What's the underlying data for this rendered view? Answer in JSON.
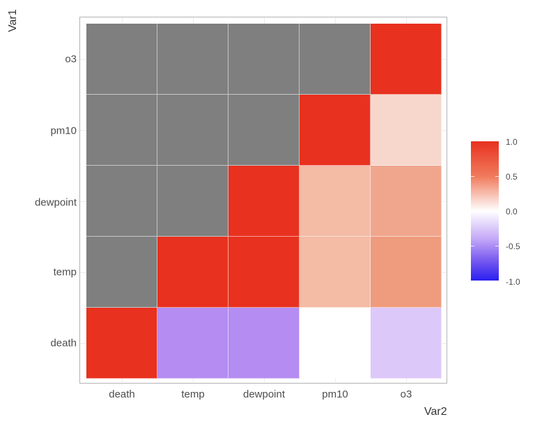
{
  "chart_data": {
    "type": "heatmap",
    "title": "",
    "xlabel": "Var2",
    "ylabel": "Var1",
    "x_categories": [
      "death",
      "temp",
      "dewpoint",
      "pm10",
      "o3"
    ],
    "y_categories_bottom_to_top": [
      "death",
      "temp",
      "dewpoint",
      "pm10",
      "o3"
    ],
    "na_color": "#7f7f7f",
    "color_scale": {
      "low": "#2a1ff0",
      "mid": "#ffffff",
      "high": "#e8311f",
      "limits": [
        -1.0,
        1.0
      ]
    },
    "legend": {
      "position": "right",
      "ticks": [
        "1.0",
        "0.5",
        "0.0",
        "-0.5",
        "-1.0"
      ]
    },
    "grid": true,
    "matrix_rows_top_to_bottom": [
      {
        "var1": "o3",
        "values": [
          null,
          null,
          null,
          null,
          1.0
        ]
      },
      {
        "var1": "pm10",
        "values": [
          null,
          null,
          null,
          1.0,
          0.2
        ]
      },
      {
        "var1": "dewpoint",
        "values": [
          null,
          null,
          1.0,
          0.35,
          0.45
        ]
      },
      {
        "var1": "temp",
        "values": [
          null,
          1.0,
          1.0,
          0.35,
          0.5
        ]
      },
      {
        "var1": "death",
        "values": [
          1.0,
          -0.5,
          -0.5,
          0.0,
          -0.2
        ]
      }
    ],
    "cell_colors_top_to_bottom": [
      [
        "#7f7f7f",
        "#7f7f7f",
        "#7f7f7f",
        "#7f7f7f",
        "#e8311f"
      ],
      [
        "#7f7f7f",
        "#7f7f7f",
        "#7f7f7f",
        "#e8311f",
        "#f7d7cc"
      ],
      [
        "#7f7f7f",
        "#7f7f7f",
        "#e8311f",
        "#f4bba5",
        "#f0a68d"
      ],
      [
        "#7f7f7f",
        "#e8311f",
        "#e8311f",
        "#f4bba5",
        "#ee9b7e"
      ],
      [
        "#e8311f",
        "#b48cf2",
        "#b48cf2",
        "#ffffff",
        "#ddc8fa"
      ]
    ]
  },
  "axes": {
    "x_title": "Var2",
    "y_title": "Var1",
    "x_ticks": [
      "death",
      "temp",
      "dewpoint",
      "pm10",
      "o3"
    ],
    "y_ticks_top_to_bottom": [
      "o3",
      "pm10",
      "dewpoint",
      "temp",
      "death"
    ]
  },
  "legend": {
    "labels": [
      "1.0",
      "0.5",
      "0.0",
      "-0.5",
      "-1.0"
    ]
  }
}
